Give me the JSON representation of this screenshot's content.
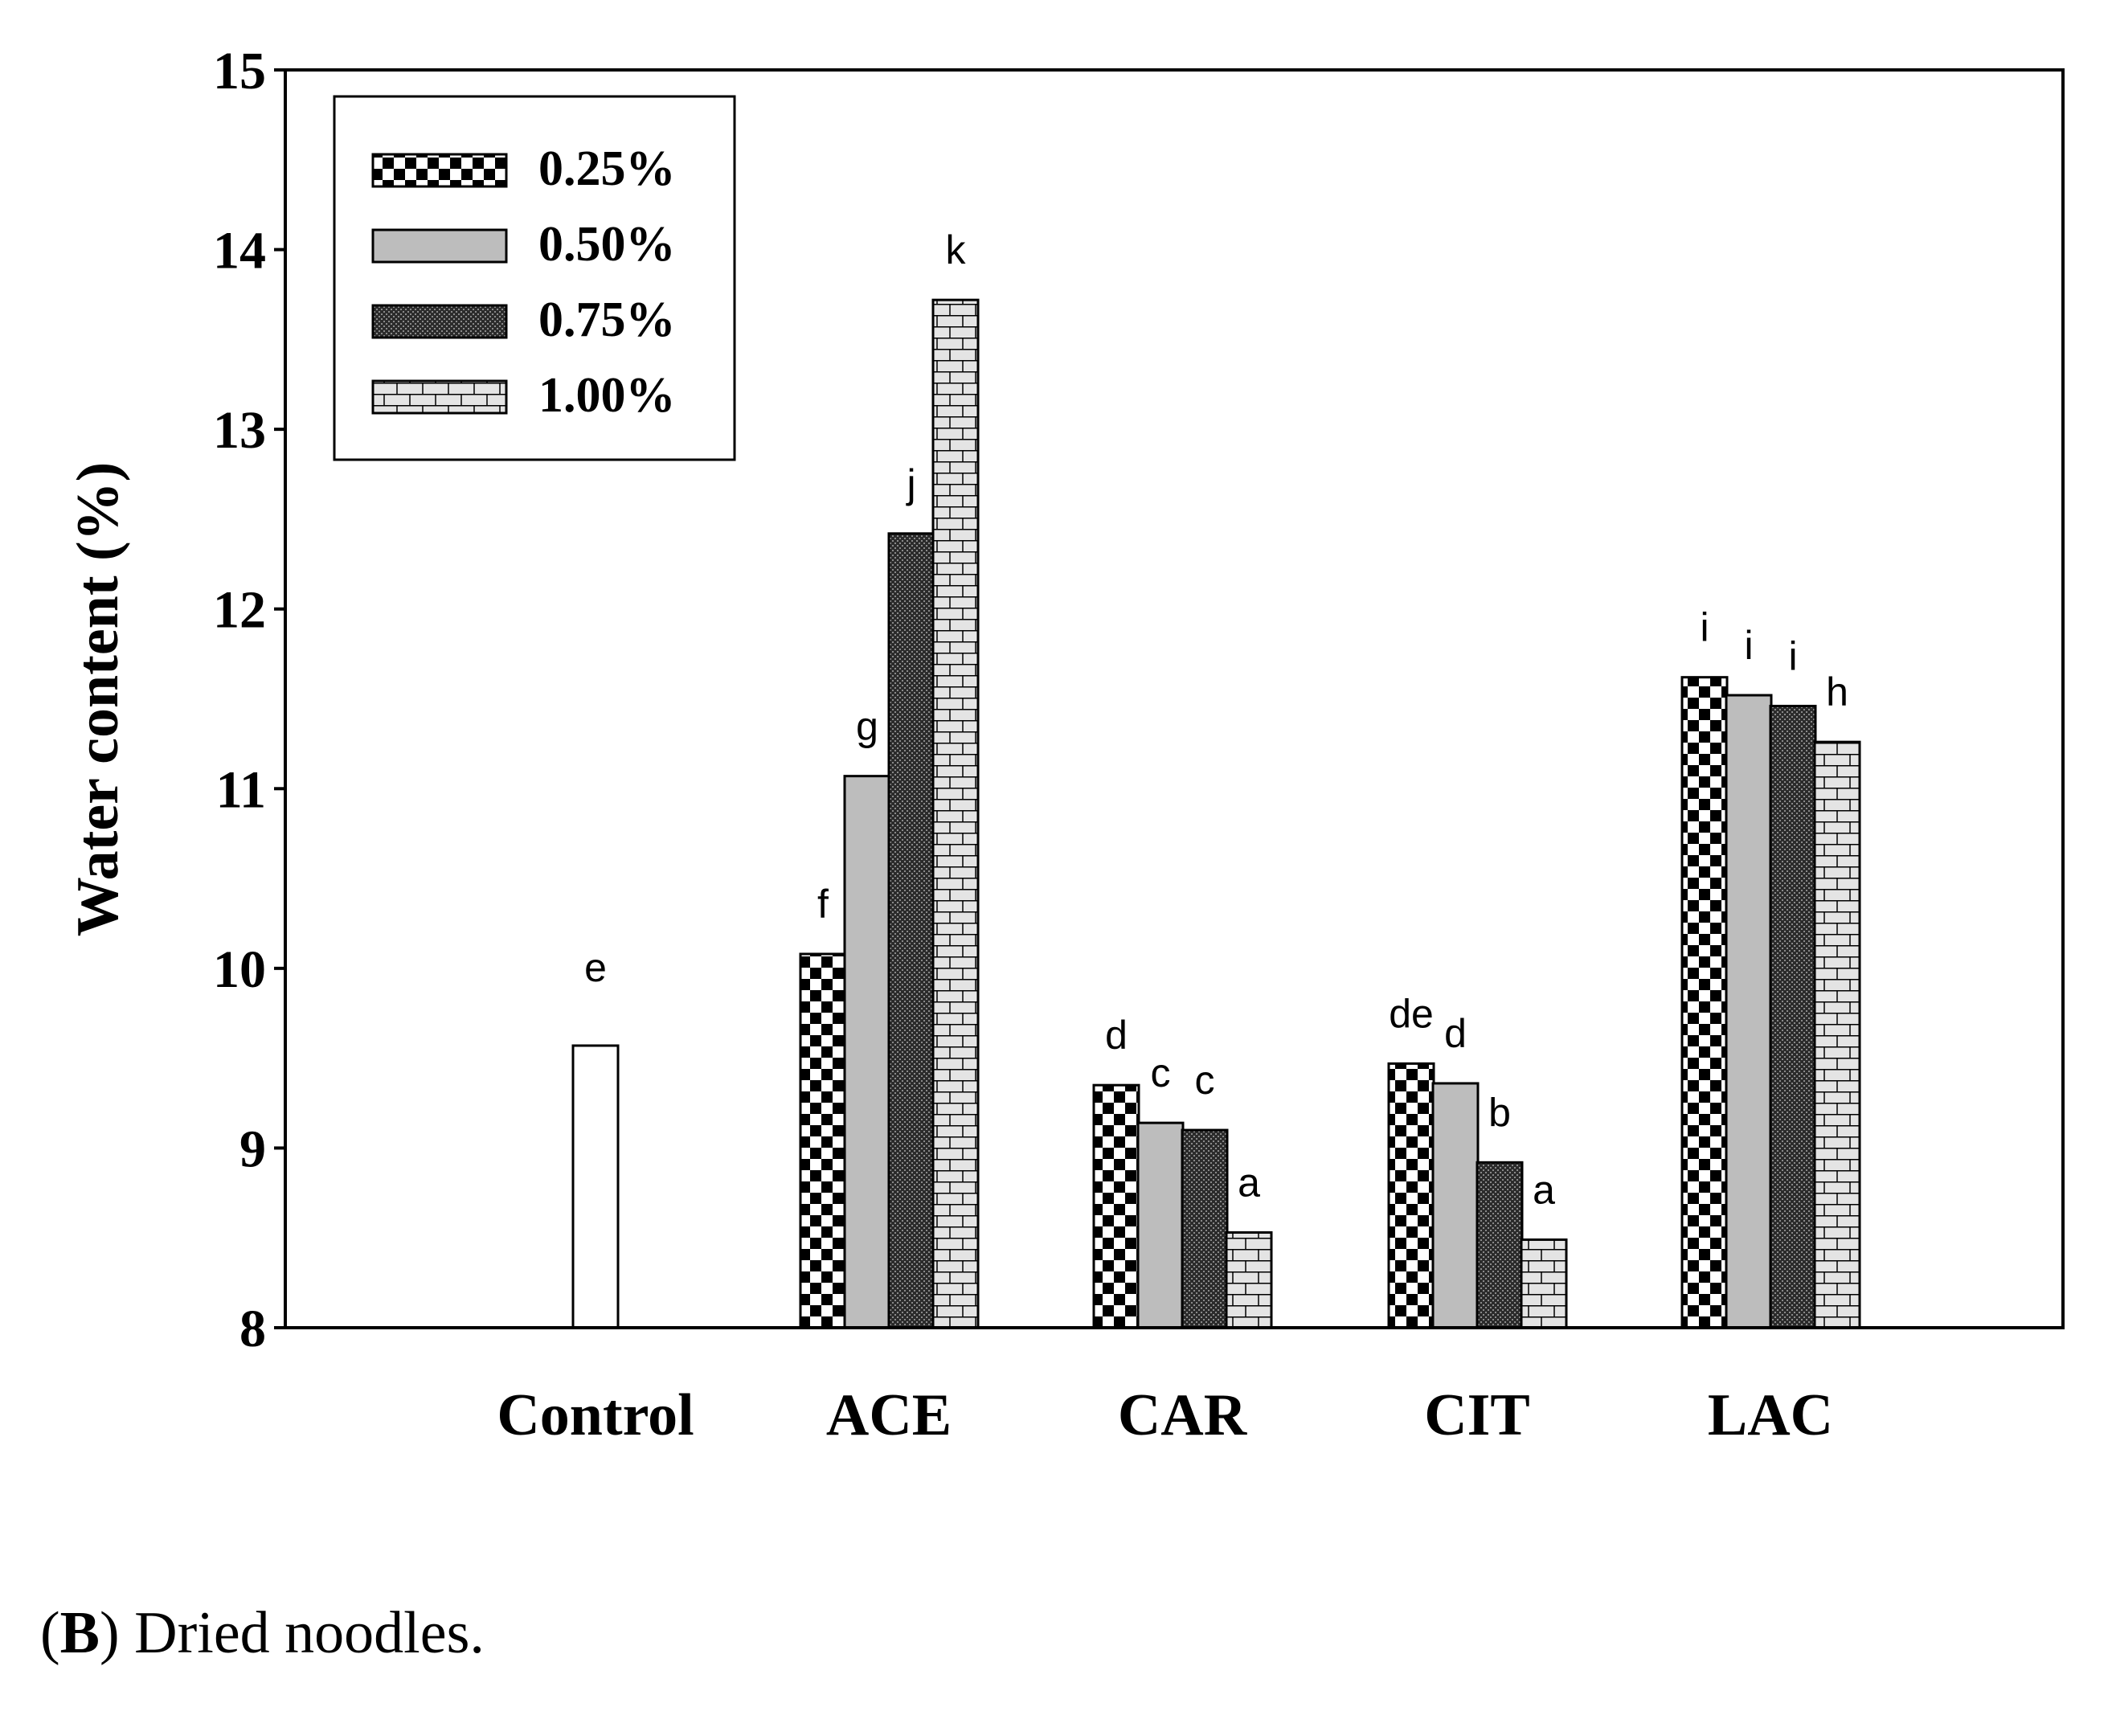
{
  "chart_data": {
    "type": "bar",
    "title": "",
    "xlabel": "",
    "ylabel": "Water content (%)",
    "ylim": [
      8,
      15
    ],
    "yticks": [
      8,
      9,
      10,
      11,
      12,
      13,
      14,
      15
    ],
    "grid": false,
    "legend_position": "top-left",
    "categories": [
      "Control",
      "ACE",
      "CAR",
      "CIT",
      "LAC"
    ],
    "control": {
      "value": 9.57,
      "label": "e"
    },
    "series": [
      {
        "name": "0.25%",
        "pattern": "checker",
        "values": [
          null,
          10.08,
          9.35,
          9.47,
          11.62
        ],
        "labels": [
          "",
          "f",
          "d",
          "de",
          "i"
        ]
      },
      {
        "name": "0.50%",
        "pattern": "gray",
        "values": [
          null,
          11.07,
          9.14,
          9.36,
          11.52
        ],
        "labels": [
          "",
          "g",
          "c",
          "d",
          "i"
        ]
      },
      {
        "name": "0.75%",
        "pattern": "dark-dots",
        "values": [
          null,
          12.42,
          9.1,
          8.92,
          11.46
        ],
        "labels": [
          "",
          "j",
          "c",
          "b",
          "i"
        ]
      },
      {
        "name": "1.00%",
        "pattern": "brick",
        "values": [
          null,
          13.72,
          8.53,
          8.49,
          11.26
        ],
        "labels": [
          "",
          "k",
          "a",
          "a",
          "h"
        ]
      }
    ]
  },
  "caption": {
    "panel": "B",
    "text": "Dried noodles."
  }
}
